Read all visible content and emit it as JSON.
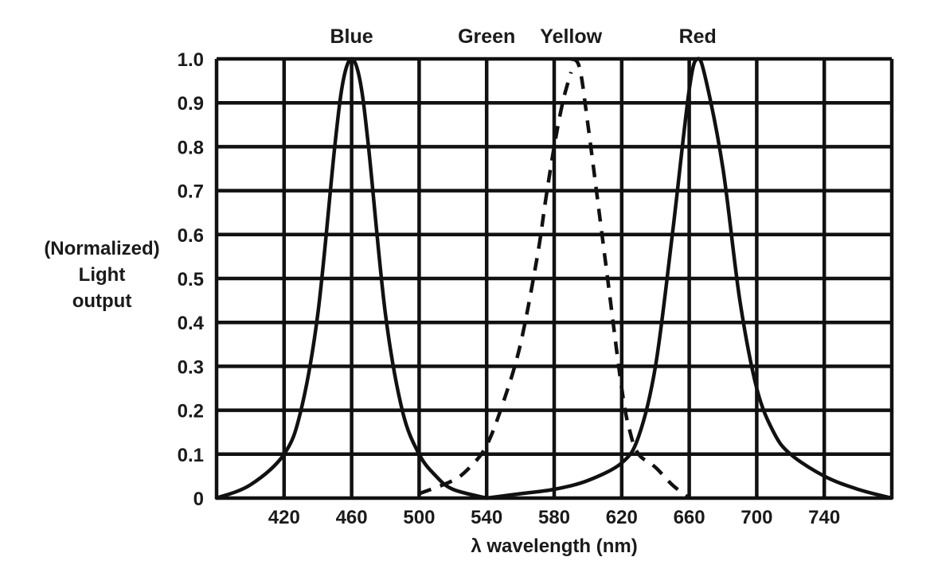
{
  "chart_data": {
    "type": "line",
    "xlabel": "λ wavelength (nm)",
    "ylabel_lines": [
      "(Normalized)",
      "Light",
      "output"
    ],
    "xlim": [
      380,
      780
    ],
    "ylim": [
      0,
      1.0
    ],
    "x_ticks": [
      "420",
      "460",
      "500",
      "540",
      "580",
      "620",
      "660",
      "700",
      "740"
    ],
    "y_ticks": [
      "0",
      "0.1",
      "0.2",
      "0.3",
      "0.4",
      "0.5",
      "0.6",
      "0.7",
      "0.8",
      "0.9",
      "1.0"
    ],
    "grid": true,
    "peak_labels": [
      {
        "text": "Blue",
        "x": 460
      },
      {
        "text": "Green",
        "x": 540
      },
      {
        "text": "Yellow",
        "x": 590
      },
      {
        "text": "Red",
        "x": 665
      }
    ],
    "series": [
      {
        "name": "Blue",
        "style": "solid",
        "x": [
          380,
          400,
          420,
          430,
          440,
          450,
          455,
          460,
          465,
          470,
          480,
          490,
          500,
          510,
          520,
          540
        ],
        "y": [
          0,
          0.03,
          0.1,
          0.2,
          0.42,
          0.8,
          0.95,
          1.0,
          0.95,
          0.8,
          0.42,
          0.2,
          0.1,
          0.05,
          0.02,
          0
        ]
      },
      {
        "name": "Green",
        "style": "dashed",
        "x": [
          500,
          520,
          530,
          540,
          550,
          560,
          570,
          575,
          580,
          585,
          590
        ],
        "y": [
          0.01,
          0.04,
          0.07,
          0.12,
          0.22,
          0.35,
          0.55,
          0.68,
          0.8,
          0.9,
          0.97
        ]
      },
      {
        "name": "Yellow",
        "style": "dashed",
        "x": [
          590,
          595,
          600,
          610,
          620,
          625,
          630,
          640,
          650,
          660
        ],
        "y": [
          1.0,
          0.98,
          0.85,
          0.55,
          0.25,
          0.15,
          0.1,
          0.07,
          0.03,
          0
        ]
      },
      {
        "name": "Red",
        "style": "solid",
        "x": [
          540,
          560,
          580,
          600,
          620,
          630,
          640,
          650,
          660,
          665,
          670,
          680,
          690,
          700,
          710,
          720,
          740,
          760,
          780
        ],
        "y": [
          0,
          0.01,
          0.02,
          0.04,
          0.08,
          0.14,
          0.3,
          0.6,
          0.93,
          1.0,
          0.95,
          0.75,
          0.45,
          0.25,
          0.15,
          0.1,
          0.05,
          0.02,
          0
        ]
      }
    ]
  }
}
